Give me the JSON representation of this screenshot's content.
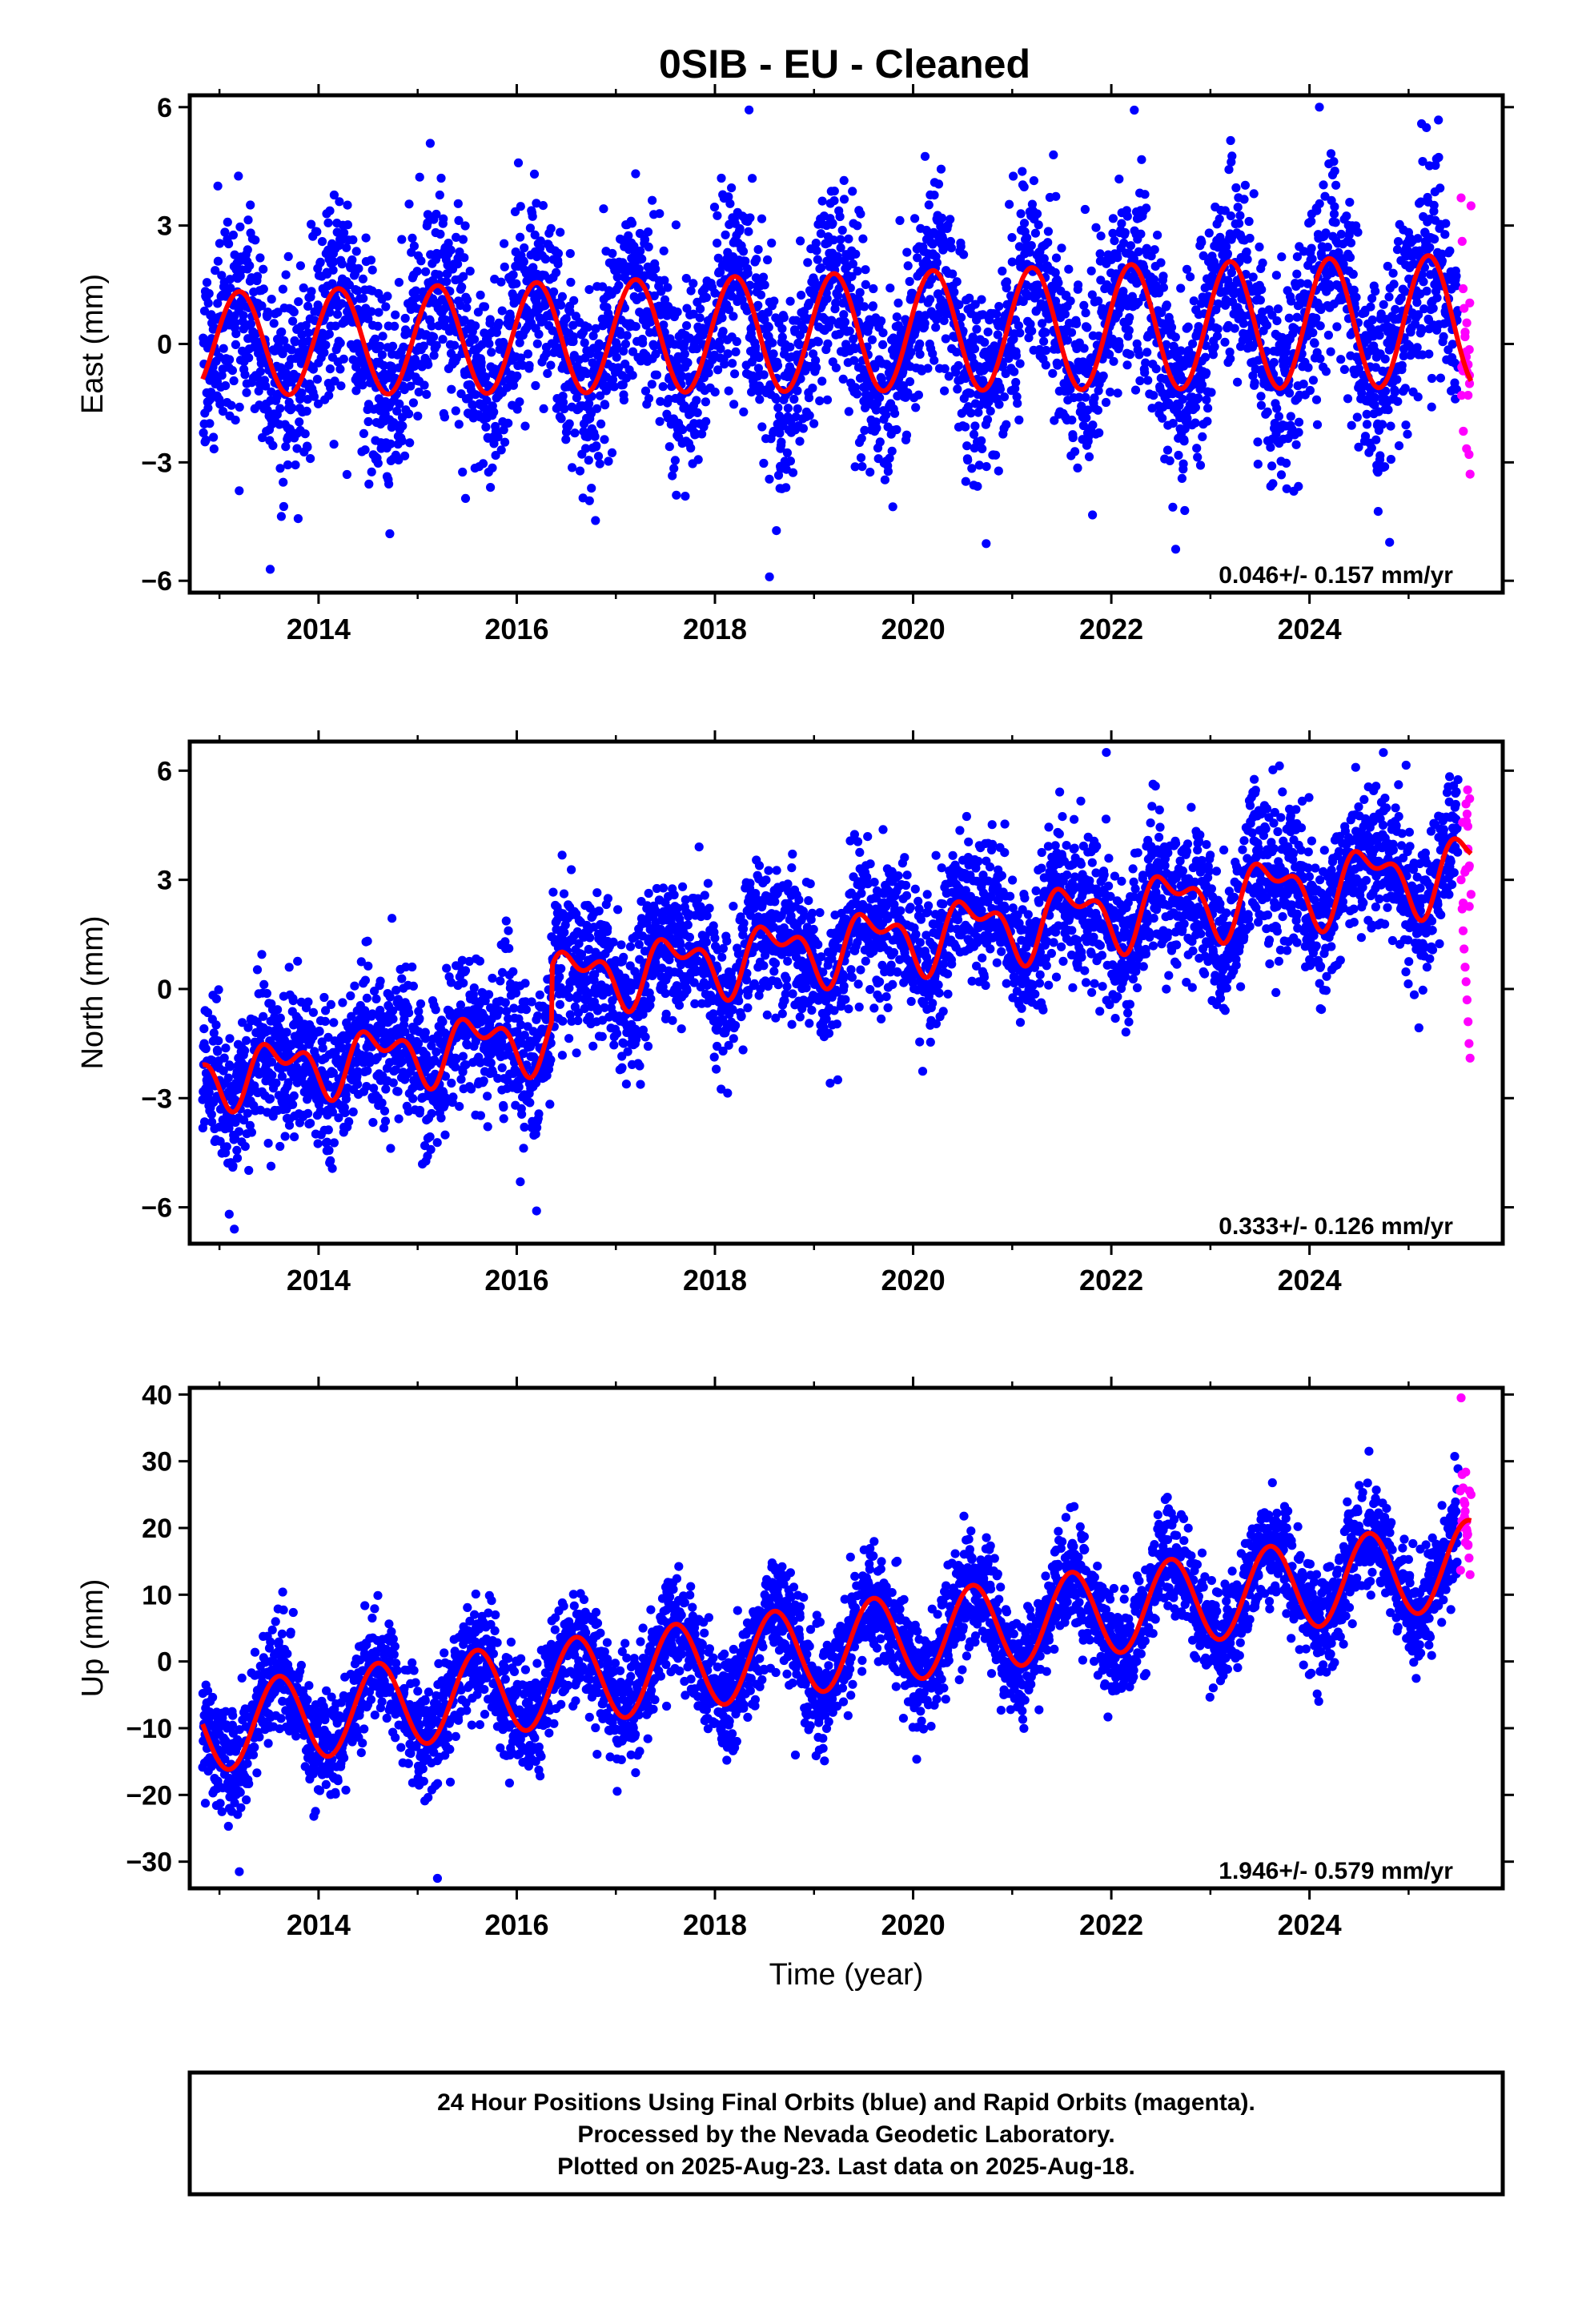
{
  "page": {
    "title": "0SIB  - EU - Cleaned",
    "xlabel": "Time (year)",
    "footer_lines": [
      "24 Hour Positions Using Final Orbits (blue) and Rapid Orbits (magenta).",
      "Processed by the Nevada Geodetic Laboratory.",
      "Plotted on 2025-Aug-23. Last data on 2025-Aug-18."
    ]
  },
  "colors": {
    "final_points": "#0000ff",
    "rapid_points": "#ff00ff",
    "model_line": "#ff0000",
    "frame": "#000000"
  },
  "chart_data": [
    {
      "type": "scatter",
      "ylabel": "East (mm)",
      "ylim": [
        -6.3,
        6.3
      ],
      "xlim": [
        2012.7,
        2025.95
      ],
      "x_ticks": [
        2014,
        2016,
        2018,
        2020,
        2022,
        2024
      ],
      "y_ticks": [
        -6,
        -3,
        0,
        3,
        6
      ],
      "y_tick_labels": [
        "−6",
        "−3",
        "0",
        "3",
        "6"
      ],
      "rate_text": "0.046+/- 0.157 mm/yr",
      "data_start": 2012.83,
      "data_end": 2025.63,
      "final_orbit_end": 2025.5,
      "model": {
        "offset": 0.0,
        "trend": 0.046,
        "annual_amp": 1.3,
        "annual_amp_growth": 0.03,
        "annual_phase_year": 2013.2,
        "semiannual_amp": 0.0,
        "semiannual_phase_year": 2013.0,
        "scatter": 1.25
      },
      "notable_points": [
        {
          "x": 2018.55,
          "y": -5.9
        },
        {
          "x": 2024.1,
          "y": 6.0
        },
        {
          "x": 2022.65,
          "y": -5.2
        }
      ],
      "rapid_points": [
        [
          2025.53,
          3.7
        ],
        [
          2025.54,
          2.6
        ],
        [
          2025.55,
          1.4
        ],
        [
          2025.56,
          0.9
        ],
        [
          2025.57,
          0.3
        ],
        [
          2025.58,
          -0.2
        ],
        [
          2025.59,
          -0.7
        ],
        [
          2025.6,
          -1.3
        ],
        [
          2025.61,
          -2.8
        ],
        [
          2025.62,
          -3.3
        ],
        [
          2025.63,
          3.5
        ]
      ]
    },
    {
      "type": "scatter",
      "ylabel": "North (mm)",
      "ylim": [
        -7.0,
        6.8
      ],
      "xlim": [
        2012.7,
        2025.95
      ],
      "x_ticks": [
        2014,
        2016,
        2018,
        2020,
        2022,
        2024
      ],
      "y_ticks": [
        -6,
        -3,
        0,
        3,
        6
      ],
      "y_tick_labels": [
        "−6",
        "−3",
        "0",
        "3",
        "6"
      ],
      "rate_text": "0.333+/- 0.126 mm/yr",
      "data_start": 2012.83,
      "data_end": 2025.63,
      "final_orbit_end": 2025.5,
      "steps": [
        {
          "x": 2016.35,
          "dy": 1.5
        }
      ],
      "model": {
        "offset": -2.45,
        "trend": 0.333,
        "annual_amp": 0.6,
        "annual_amp_growth": 0.02,
        "annual_phase_year": 2013.6,
        "semiannual_amp": 0.45,
        "semiannual_phase_year": 2013.4,
        "scatter": 1.0
      },
      "notable_points": [
        {
          "x": 2021.95,
          "y": 6.5
        },
        {
          "x": 2013.15,
          "y": -6.6
        },
        {
          "x": 2016.2,
          "y": -6.1
        }
      ],
      "rapid_points": [
        [
          2025.53,
          3.0
        ],
        [
          2025.54,
          2.2
        ],
        [
          2025.55,
          1.6
        ],
        [
          2025.56,
          1.1
        ],
        [
          2025.57,
          0.6
        ],
        [
          2025.58,
          0.2
        ],
        [
          2025.59,
          -0.3
        ],
        [
          2025.6,
          -0.9
        ],
        [
          2025.61,
          -1.5
        ],
        [
          2025.62,
          -1.9
        ],
        [
          2025.63,
          2.6
        ]
      ]
    },
    {
      "type": "scatter",
      "ylabel": "Up (mm)",
      "ylim": [
        -34,
        41
      ],
      "xlim": [
        2012.7,
        2025.95
      ],
      "x_ticks": [
        2014,
        2016,
        2018,
        2020,
        2022,
        2024
      ],
      "y_ticks": [
        -30,
        -20,
        -10,
        0,
        10,
        20,
        30,
        40
      ],
      "y_tick_labels": [
        "−30",
        "−20",
        "−10",
        "0",
        "10",
        "20",
        "30",
        "40"
      ],
      "rate_text": "1.946+/- 0.579 mm/yr",
      "data_start": 2012.83,
      "data_end": 2025.63,
      "final_orbit_end": 2025.5,
      "model": {
        "offset": -10.2,
        "trend": 1.946,
        "annual_amp": 6.5,
        "annual_amp_growth": 0.0,
        "annual_phase_year": 2013.6,
        "semiannual_amp": 0.0,
        "semiannual_phase_year": 2013.0,
        "scatter": 4.0
      },
      "notable_points": [
        {
          "x": 2013.2,
          "y": -31.5
        },
        {
          "x": 2015.2,
          "y": -32.5
        },
        {
          "x": 2024.6,
          "y": 31.5
        }
      ],
      "rapid_points": [
        [
          2025.53,
          39.5
        ],
        [
          2025.54,
          28.0
        ],
        [
          2025.55,
          26.0
        ],
        [
          2025.56,
          24.0
        ],
        [
          2025.57,
          22.5
        ],
        [
          2025.58,
          21.0
        ],
        [
          2025.59,
          19.5
        ],
        [
          2025.6,
          17.5
        ],
        [
          2025.61,
          15.5
        ],
        [
          2025.62,
          13.0
        ],
        [
          2025.63,
          25.0
        ]
      ]
    }
  ]
}
